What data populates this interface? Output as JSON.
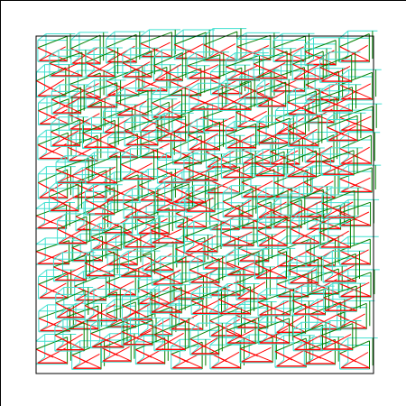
{
  "diagram": {
    "kind": "wireframe-mesh",
    "grid": {
      "rows": 10,
      "cols": 10
    },
    "colors": {
      "background": "#ffffff",
      "frame": "#000000",
      "box_edges": "#40e0d0",
      "diagonals": "#ff0000",
      "verticals": "#008000"
    }
  }
}
